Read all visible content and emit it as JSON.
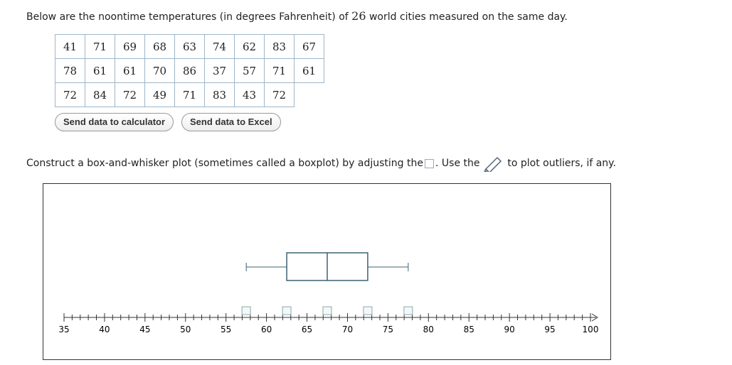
{
  "intro": {
    "before": "Below are the noontime temperatures (in degrees Fahrenheit) of",
    "count": 26,
    "after": "world cities measured on the same day."
  },
  "table": {
    "rows": [
      [
        "41",
        "71",
        "69",
        "68",
        "63",
        "74",
        "62",
        "83",
        "67"
      ],
      [
        "78",
        "61",
        "61",
        "70",
        "86",
        "37",
        "57",
        "71",
        "61"
      ],
      [
        "72",
        "84",
        "72",
        "49",
        "71",
        "83",
        "43",
        "72"
      ]
    ]
  },
  "buttons": [
    "Send data to calculator",
    "Send data to Excel"
  ],
  "instruction": {
    "before": "Construct a box-and-whisker plot (sometimes called a boxplot) by adjusting the",
    "middle": ". Use the",
    "after": "to plot outliers, if any."
  },
  "plot": {
    "xlim": [
      35,
      100
    ],
    "xticks": [
      35,
      40,
      45,
      50,
      55,
      60,
      65,
      70,
      75,
      80,
      85,
      90,
      95,
      100
    ],
    "minor_ticks": [
      36,
      37,
      38,
      39,
      41,
      42,
      43,
      44,
      46,
      47,
      48,
      49,
      51,
      52,
      53,
      54,
      56,
      57,
      58,
      59,
      61,
      62,
      63,
      64,
      66,
      67,
      68,
      69,
      71,
      72,
      73,
      74,
      76,
      77,
      78,
      79,
      81,
      82,
      83,
      84,
      86,
      87,
      88,
      89,
      91,
      92,
      93,
      94,
      96,
      97,
      98,
      99
    ],
    "box": {
      "min": 57.5,
      "q1": 62.5,
      "median": 67.5,
      "q3": 72.5,
      "max": 77.5
    }
  }
}
